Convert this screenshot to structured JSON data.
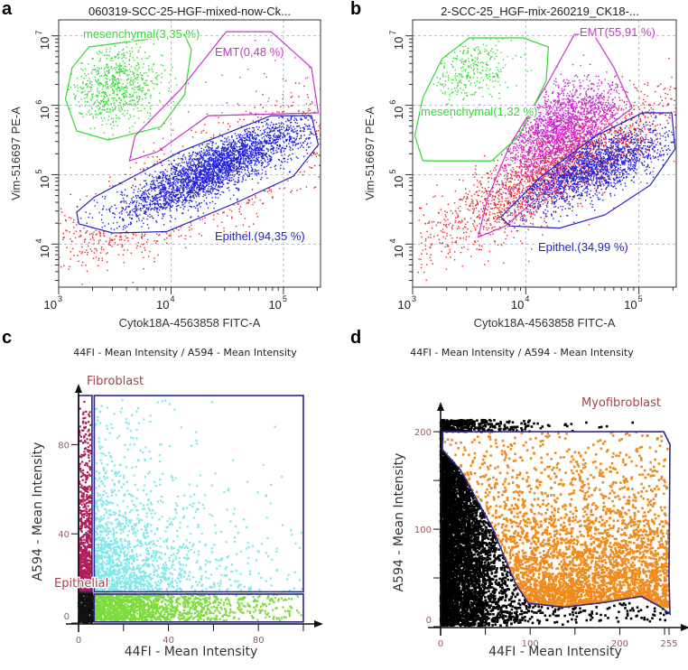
{
  "panel_letters": [
    "a",
    "b",
    "c",
    "d"
  ],
  "chart_data": [
    {
      "panel": "a",
      "type": "scatter",
      "units": "log10",
      "title": "060319-SCC-25-HGF-mixed-now-Ck...",
      "xlabel": "Cytok18A-4563858 FITC-A",
      "ylabel": "Vim-516697 PE-A",
      "xscale": "log",
      "yscale": "log",
      "xlim": [
        3,
        5.33
      ],
      "ylim": [
        3.38,
        7.23
      ],
      "grid": true,
      "xticks": [
        {
          "v": 3,
          "base": "10",
          "exp": "3"
        },
        {
          "v": 4,
          "base": "10",
          "exp": "4"
        },
        {
          "v": 5,
          "base": "10",
          "exp": "5"
        }
      ],
      "yticks": [
        {
          "v": 4,
          "base": "10",
          "exp": "4"
        },
        {
          "v": 5,
          "base": "10",
          "exp": "5"
        },
        {
          "v": 6,
          "base": "10",
          "exp": "6"
        },
        {
          "v": 7,
          "base": "10",
          "exp": "7"
        }
      ],
      "gates": [
        {
          "name": "mesenchymal",
          "label": "mesenchymal(3,35 %)",
          "percent": 3.35,
          "color": "#2edc2e",
          "polygon": [
            [
              3.27,
              6.84
            ],
            [
              4.12,
              7.02
            ],
            [
              4.18,
              6.8
            ],
            [
              4.12,
              6.15
            ],
            [
              3.91,
              5.69
            ],
            [
              3.44,
              5.5
            ],
            [
              3.16,
              5.63
            ],
            [
              3.06,
              6.09
            ],
            [
              3.12,
              6.54
            ]
          ]
        },
        {
          "name": "EMT",
          "label": "EMT(0,48 %)",
          "percent": 0.48,
          "color": "#cc33cc",
          "polygon": [
            [
              4.49,
              7.06
            ],
            [
              4.89,
              7.06
            ],
            [
              5.25,
              6.54
            ],
            [
              5.31,
              5.89
            ],
            [
              4.33,
              5.85
            ],
            [
              3.88,
              5.33
            ],
            [
              3.63,
              5.2
            ],
            [
              3.68,
              5.56
            ],
            [
              4.08,
              6.22
            ]
          ]
        },
        {
          "name": "Epithel",
          "label": "Epithel.(94,35 %)",
          "percent": 94.35,
          "color": "#2222cc",
          "polygon": [
            [
              3.16,
              4.46
            ],
            [
              3.32,
              4.68
            ],
            [
              4.08,
              5.33
            ],
            [
              4.89,
              5.85
            ],
            [
              5.25,
              5.85
            ],
            [
              5.31,
              5.43
            ],
            [
              5.09,
              4.98
            ],
            [
              4.57,
              4.59
            ],
            [
              3.96,
              4.18
            ],
            [
              3.48,
              4.16
            ],
            [
              3.18,
              4.29
            ]
          ]
        }
      ],
      "populations": [
        {
          "color": "#ee2222",
          "n": 450,
          "x": {
            "dist": "gauss",
            "mean": 4.3,
            "sd": 0.6
          },
          "y": {
            "dist": "gauss",
            "mean": 4.9,
            "sd": 0.5
          },
          "rho": 0.8,
          "keep": "outside:2"
        },
        {
          "color": "#2020dd",
          "n": 3200,
          "x": {
            "dist": "gauss",
            "mean": 4.4,
            "sd": 0.42
          },
          "y": {
            "dist": "gauss",
            "mean": 5.1,
            "sd": 0.36
          },
          "rho": 0.85,
          "keep": "inside:2"
        },
        {
          "color": "#33dd33",
          "n": 700,
          "x": {
            "dist": "gauss",
            "mean": 3.52,
            "sd": 0.2
          },
          "y": {
            "dist": "gauss",
            "mean": 6.3,
            "sd": 0.3
          },
          "rho": 0.1,
          "keep": "inside:0"
        },
        {
          "color": "#cc33cc",
          "n": 40,
          "x": {
            "dist": "uniform",
            "min": 3.7,
            "max": 5.3
          },
          "y": {
            "dist": "uniform",
            "min": 5.2,
            "max": 7
          },
          "rho": 0,
          "keep": "inside:1"
        }
      ]
    },
    {
      "panel": "b",
      "type": "scatter",
      "units": "log10",
      "title": "2-SCC-25_HGF-mix-260219_CK18-...",
      "xlabel": "Cytok18A-4563858 FITC-A",
      "ylabel": "Vim-516697 PE-A",
      "xscale": "log",
      "yscale": "log",
      "xlim": [
        3,
        5.33
      ],
      "ylim": [
        3.38,
        7.23
      ],
      "grid": true,
      "xticks": [
        {
          "v": 3,
          "base": "10",
          "exp": "3"
        },
        {
          "v": 4,
          "base": "10",
          "exp": "4"
        },
        {
          "v": 5,
          "base": "10",
          "exp": "5"
        }
      ],
      "yticks": [
        {
          "v": 4,
          "base": "10",
          "exp": "4"
        },
        {
          "v": 5,
          "base": "10",
          "exp": "5"
        },
        {
          "v": 6,
          "base": "10",
          "exp": "6"
        },
        {
          "v": 7,
          "base": "10",
          "exp": "7"
        }
      ],
      "gates": [
        {
          "name": "EMT",
          "label": "EMT(55,91 %)",
          "percent": 55.91,
          "color": "#cc33cc",
          "polygon": [
            [
              4.43,
              7.02
            ],
            [
              4.6,
              7.02
            ],
            [
              4.78,
              6.54
            ],
            [
              4.94,
              5.96
            ],
            [
              4.46,
              5.37
            ],
            [
              4.14,
              4.72
            ],
            [
              3.82,
              4.26
            ],
            [
              3.58,
              4.1
            ],
            [
              3.66,
              4.65
            ],
            [
              3.86,
              5.43
            ],
            [
              4.18,
              6.28
            ]
          ]
        },
        {
          "name": "mesenchymal",
          "label": "mesenchymal(1,32 %)",
          "percent": 1.32,
          "color": "#2edc2e",
          "polygon": [
            [
              3.09,
              6.11
            ],
            [
              3.26,
              6.67
            ],
            [
              3.5,
              6.97
            ],
            [
              3.98,
              6.97
            ],
            [
              4.2,
              6.84
            ],
            [
              4.18,
              6.35
            ],
            [
              3.94,
              5.56
            ],
            [
              3.7,
              5.2
            ],
            [
              3.09,
              5.2
            ],
            [
              3.02,
              5.56
            ]
          ]
        },
        {
          "name": "Epithel",
          "label": "Epithel.(34,99 %)",
          "percent": 34.99,
          "color": "#2222cc",
          "polygon": [
            [
              3.78,
              4.39
            ],
            [
              4.14,
              4.98
            ],
            [
              4.62,
              5.56
            ],
            [
              5.03,
              5.89
            ],
            [
              5.29,
              5.89
            ],
            [
              5.32,
              5.37
            ],
            [
              5.1,
              4.85
            ],
            [
              4.7,
              4.42
            ],
            [
              4.3,
              4.23
            ],
            [
              3.86,
              4.26
            ]
          ]
        }
      ],
      "populations": [
        {
          "color": "#ee2222",
          "n": 2200,
          "x": {
            "dist": "gauss",
            "mean": 4.25,
            "sd": 0.55
          },
          "y": {
            "dist": "gauss",
            "mean": 5.05,
            "sd": 0.55
          },
          "rho": 0.85,
          "keep": "all"
        },
        {
          "color": "#cc22cc",
          "n": 2000,
          "x": {
            "dist": "gauss",
            "mean": 4.3,
            "sd": 0.28
          },
          "y": {
            "dist": "gauss",
            "mean": 5.65,
            "sd": 0.35
          },
          "rho": 0.5,
          "keep": "inside:0"
        },
        {
          "color": "#2020dd",
          "n": 1700,
          "x": {
            "dist": "gauss",
            "mean": 4.6,
            "sd": 0.35
          },
          "y": {
            "dist": "gauss",
            "mean": 5.1,
            "sd": 0.3
          },
          "rho": 0.7,
          "keep": "inside:2"
        },
        {
          "color": "#33dd33",
          "n": 300,
          "x": {
            "dist": "gauss",
            "mean": 3.5,
            "sd": 0.2
          },
          "y": {
            "dist": "gauss",
            "mean": 6.5,
            "sd": 0.25
          },
          "rho": 0.2,
          "keep": "inside:1"
        }
      ]
    },
    {
      "panel": "c",
      "type": "scatter",
      "units": "linear",
      "title": "44FI - Mean Intensity / A594 - Mean Intensity",
      "xlabel": "44FI - Mean Intensity",
      "ylabel": "A594 - Mean Intensity",
      "xscale": "linear",
      "yscale": "linear",
      "xlim": [
        0,
        100
      ],
      "ylim": [
        0,
        100
      ],
      "grid": false,
      "xticks": [
        {
          "v": 0,
          "label": "0"
        },
        {
          "v": 20
        },
        {
          "v": 40,
          "label": "40"
        },
        {
          "v": 60
        },
        {
          "v": 80,
          "label": "80"
        },
        {
          "v": 100
        }
      ],
      "yticks": [
        {
          "v": 0,
          "label": "0"
        },
        {
          "v": 40,
          "label": "40"
        },
        {
          "v": 80,
          "label": "80"
        }
      ],
      "gates": [
        {
          "name": "Fibroblast",
          "label": "Fibroblast",
          "color": "#2a2a90",
          "label_color": "#a8404a",
          "polygon": [
            [
              0,
              14
            ],
            [
              6,
              14
            ],
            [
              6,
              102
            ],
            [
              0,
              102
            ]
          ]
        },
        {
          "name": "Myofibroblast",
          "color": "#2a2a90",
          "polygon": [
            [
              7,
              14
            ],
            [
              100,
              14
            ],
            [
              100,
              102
            ],
            [
              7,
              102
            ]
          ]
        },
        {
          "name": "Epithelial",
          "label": "Epithelial",
          "color": "#2a2a90",
          "label_color": "#a8404a",
          "polygon": [
            [
              7,
              0.5
            ],
            [
              100,
              0.5
            ],
            [
              100,
              13
            ],
            [
              7,
              13
            ]
          ]
        }
      ],
      "populations": [
        {
          "color": "#111111",
          "n": 500,
          "x": {
            "dist": "uniform",
            "min": 0,
            "max": 6.5
          },
          "y": {
            "dist": "uniform",
            "min": 0,
            "max": 14
          },
          "rho": 0,
          "keep": "all"
        },
        {
          "color": "#b01e5a",
          "n": 700,
          "x": {
            "dist": "uniform",
            "min": 0.3,
            "max": 5.5
          },
          "y": {
            "dist": "exp",
            "min": 14,
            "scale": 30
          },
          "rho": 0,
          "keep": "inside:0"
        },
        {
          "color": "#7ee8ea",
          "n": 1500,
          "x": {
            "dist": "exp",
            "min": 7.5,
            "scale": 22
          },
          "y": {
            "dist": "exp",
            "min": 14,
            "scale": 22
          },
          "rho": 0,
          "keep": "inside:1"
        },
        {
          "color": "#7cdc3c",
          "n": 1500,
          "x": {
            "dist": "exp",
            "min": 7.5,
            "scale": 28
          },
          "y": {
            "dist": "uniform",
            "min": 1,
            "max": 13
          },
          "rho": 0,
          "keep": "inside:2"
        }
      ]
    },
    {
      "panel": "d",
      "type": "scatter",
      "units": "linear",
      "title": "44FI - Mean Intensity / A594 - Mean Intensity",
      "xlabel": "44FI - Mean Intensity",
      "ylabel": "A594 - Mean Intensity",
      "xscale": "linear",
      "yscale": "linear",
      "xlim": [
        0,
        256
      ],
      "ylim": [
        0,
        214
      ],
      "grid": false,
      "xticks": [
        {
          "v": 0,
          "label": "0"
        },
        {
          "v": 50
        },
        {
          "v": 100,
          "label": "100"
        },
        {
          "v": 150
        },
        {
          "v": 200,
          "label": "200"
        },
        {
          "v": 250
        },
        {
          "v": 255,
          "label": "255"
        }
      ],
      "yticks": [
        {
          "v": 0,
          "label": "0"
        },
        {
          "v": 50
        },
        {
          "v": 100,
          "label": "100"
        },
        {
          "v": 150
        },
        {
          "v": 200,
          "label": "200"
        }
      ],
      "gates": [
        {
          "name": "Myofibroblast",
          "label": "Myofibroblast",
          "color": "#2a2a90",
          "label_color": "#a8404a",
          "polygon": [
            [
              2,
              200
            ],
            [
              249,
              200
            ],
            [
              256,
              187
            ],
            [
              255,
              50
            ],
            [
              256,
              13
            ],
            [
              246,
              20
            ],
            [
              224,
              31
            ],
            [
              184,
              25
            ],
            [
              138,
              20
            ],
            [
              98,
              24
            ],
            [
              83,
              45
            ],
            [
              58,
              101
            ],
            [
              22,
              161
            ],
            [
              2,
              181
            ]
          ]
        }
      ],
      "populations": [
        {
          "color": "#000000",
          "n": 5000,
          "x": {
            "dist": "exp",
            "min": 0,
            "scale": 35
          },
          "y": {
            "dist": "uniform",
            "min": 1,
            "max": 212
          },
          "rho": 0,
          "keep": "outside:0"
        },
        {
          "color": "#000000",
          "n": 120,
          "x": {
            "dist": "uniform",
            "min": 40,
            "max": 255
          },
          "y": {
            "dist": "uniform",
            "min": 5,
            "max": 25
          },
          "rho": 0,
          "keep": "outside:0"
        },
        {
          "color": "#f08a1c",
          "n": 3200,
          "x": {
            "dist": "uniform",
            "min": 0,
            "max": 255
          },
          "y": {
            "dist": "exp",
            "min": 20,
            "scale": 55
          },
          "rho": 0,
          "keep": "inside:0"
        }
      ]
    }
  ]
}
